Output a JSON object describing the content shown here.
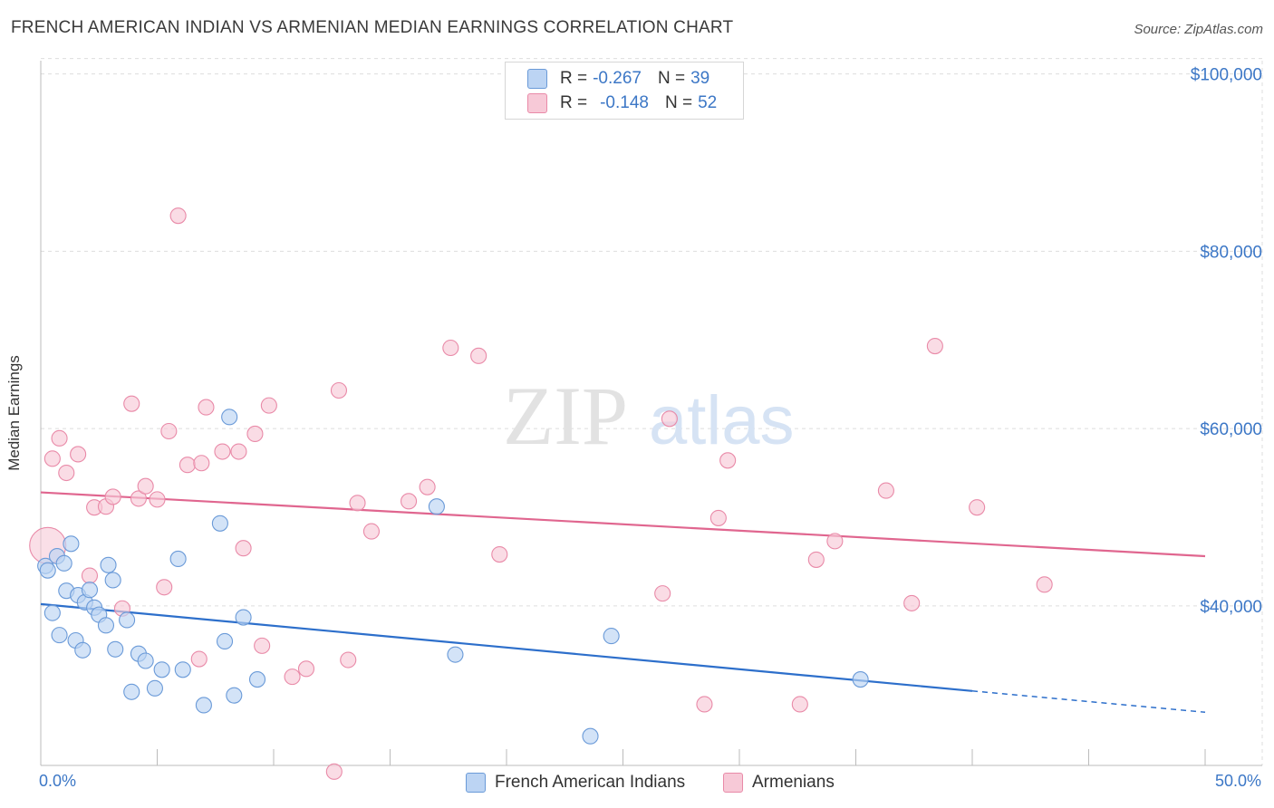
{
  "title": "FRENCH AMERICAN INDIAN VS ARMENIAN MEDIAN EARNINGS CORRELATION CHART",
  "source": "Source: ZipAtlas.com",
  "watermark": {
    "zip": "ZIP",
    "atlas": "atlas"
  },
  "legend": {
    "series1": {
      "r_label": "R =",
      "r_value": "-0.267",
      "n_label": "N =",
      "n_value": "39"
    },
    "series2": {
      "r_label": "R =",
      "r_value": "-0.148",
      "n_label": "N =",
      "n_value": "52"
    }
  },
  "colors": {
    "blue_fill": "#bcd4f3",
    "blue_stroke": "#6a9ad8",
    "blue_line": "#2d6fcb",
    "pink_fill": "#f7c9d7",
    "pink_stroke": "#e98aa8",
    "pink_line": "#e0668f",
    "axis_text": "#3c77c6",
    "grid": "#dddddd"
  },
  "chart_data": {
    "type": "scatter",
    "title": "FRENCH AMERICAN INDIAN VS ARMENIAN MEDIAN EARNINGS CORRELATION CHART",
    "xlabel": "",
    "ylabel": "Median Earnings",
    "xlim": [
      0,
      50
    ],
    "ylim": [
      22000,
      102000
    ],
    "x_tick_labels": [
      "0.0%",
      "50.0%"
    ],
    "y_ticks": [
      40000,
      60000,
      80000,
      100000
    ],
    "y_tick_labels": [
      "$40,000",
      "$60,000",
      "$80,000",
      "$100,000"
    ],
    "series": [
      {
        "name": "French American Indians",
        "color": "#6a9ad8",
        "points": [
          [
            0.2,
            44500
          ],
          [
            0.3,
            44000
          ],
          [
            0.5,
            39200
          ],
          [
            0.7,
            45600
          ],
          [
            0.8,
            36700
          ],
          [
            1.0,
            44800
          ],
          [
            1.1,
            41700
          ],
          [
            1.3,
            47000
          ],
          [
            1.5,
            36100
          ],
          [
            1.6,
            41200
          ],
          [
            1.8,
            35000
          ],
          [
            1.9,
            40400
          ],
          [
            2.1,
            41800
          ],
          [
            2.3,
            39800
          ],
          [
            2.5,
            39000
          ],
          [
            2.8,
            37800
          ],
          [
            2.9,
            44600
          ],
          [
            3.1,
            42900
          ],
          [
            3.2,
            35100
          ],
          [
            3.7,
            38400
          ],
          [
            3.9,
            30300
          ],
          [
            4.2,
            34600
          ],
          [
            4.5,
            33800
          ],
          [
            4.9,
            30700
          ],
          [
            5.2,
            32800
          ],
          [
            5.9,
            45300
          ],
          [
            6.1,
            32800
          ],
          [
            7.0,
            28800
          ],
          [
            7.7,
            49300
          ],
          [
            7.9,
            36000
          ],
          [
            8.1,
            61300
          ],
          [
            8.3,
            29900
          ],
          [
            8.7,
            38700
          ],
          [
            9.3,
            31700
          ],
          [
            17.0,
            51200
          ],
          [
            17.8,
            34500
          ],
          [
            23.6,
            25300
          ],
          [
            24.5,
            36600
          ],
          [
            35.2,
            31700
          ]
        ],
        "trend": {
          "x0": 0,
          "y0": 40200,
          "x1": 40,
          "y1": 30400,
          "dash_to_x": 50,
          "dash_to_y": 28000
        }
      },
      {
        "name": "Armenians",
        "color": "#e98aa8",
        "points": [
          [
            0.3,
            46800
          ],
          [
            0.5,
            56600
          ],
          [
            0.8,
            58900
          ],
          [
            1.1,
            55000
          ],
          [
            1.6,
            57100
          ],
          [
            2.1,
            43400
          ],
          [
            2.3,
            51100
          ],
          [
            2.8,
            51200
          ],
          [
            3.1,
            52300
          ],
          [
            3.5,
            39700
          ],
          [
            3.9,
            62800
          ],
          [
            4.2,
            52100
          ],
          [
            4.5,
            53500
          ],
          [
            5.0,
            52000
          ],
          [
            5.3,
            42100
          ],
          [
            5.5,
            59700
          ],
          [
            5.9,
            84000
          ],
          [
            6.3,
            55900
          ],
          [
            6.8,
            34000
          ],
          [
            6.9,
            56100
          ],
          [
            7.1,
            62400
          ],
          [
            7.8,
            57400
          ],
          [
            8.5,
            57400
          ],
          [
            8.7,
            46500
          ],
          [
            9.2,
            59400
          ],
          [
            9.5,
            35500
          ],
          [
            9.8,
            62600
          ],
          [
            10.8,
            32000
          ],
          [
            11.4,
            32900
          ],
          [
            12.6,
            21300
          ],
          [
            12.8,
            64300
          ],
          [
            13.2,
            33900
          ],
          [
            13.6,
            51600
          ],
          [
            14.2,
            48400
          ],
          [
            15.8,
            51800
          ],
          [
            16.6,
            53400
          ],
          [
            17.6,
            69100
          ],
          [
            18.8,
            68200
          ],
          [
            19.7,
            45800
          ],
          [
            26.7,
            41400
          ],
          [
            27.0,
            61100
          ],
          [
            28.5,
            28900
          ],
          [
            29.1,
            49900
          ],
          [
            29.5,
            56400
          ],
          [
            32.6,
            28900
          ],
          [
            33.3,
            45200
          ],
          [
            34.1,
            47300
          ],
          [
            36.3,
            53000
          ],
          [
            37.4,
            40300
          ],
          [
            38.4,
            69300
          ],
          [
            40.2,
            51100
          ],
          [
            43.1,
            42400
          ]
        ],
        "trend": {
          "x0": 0,
          "y0": 52800,
          "x1": 50,
          "y1": 45600
        }
      }
    ]
  },
  "bottom_legend": {
    "series1_label": "French American Indians",
    "series2_label": "Armenians"
  }
}
